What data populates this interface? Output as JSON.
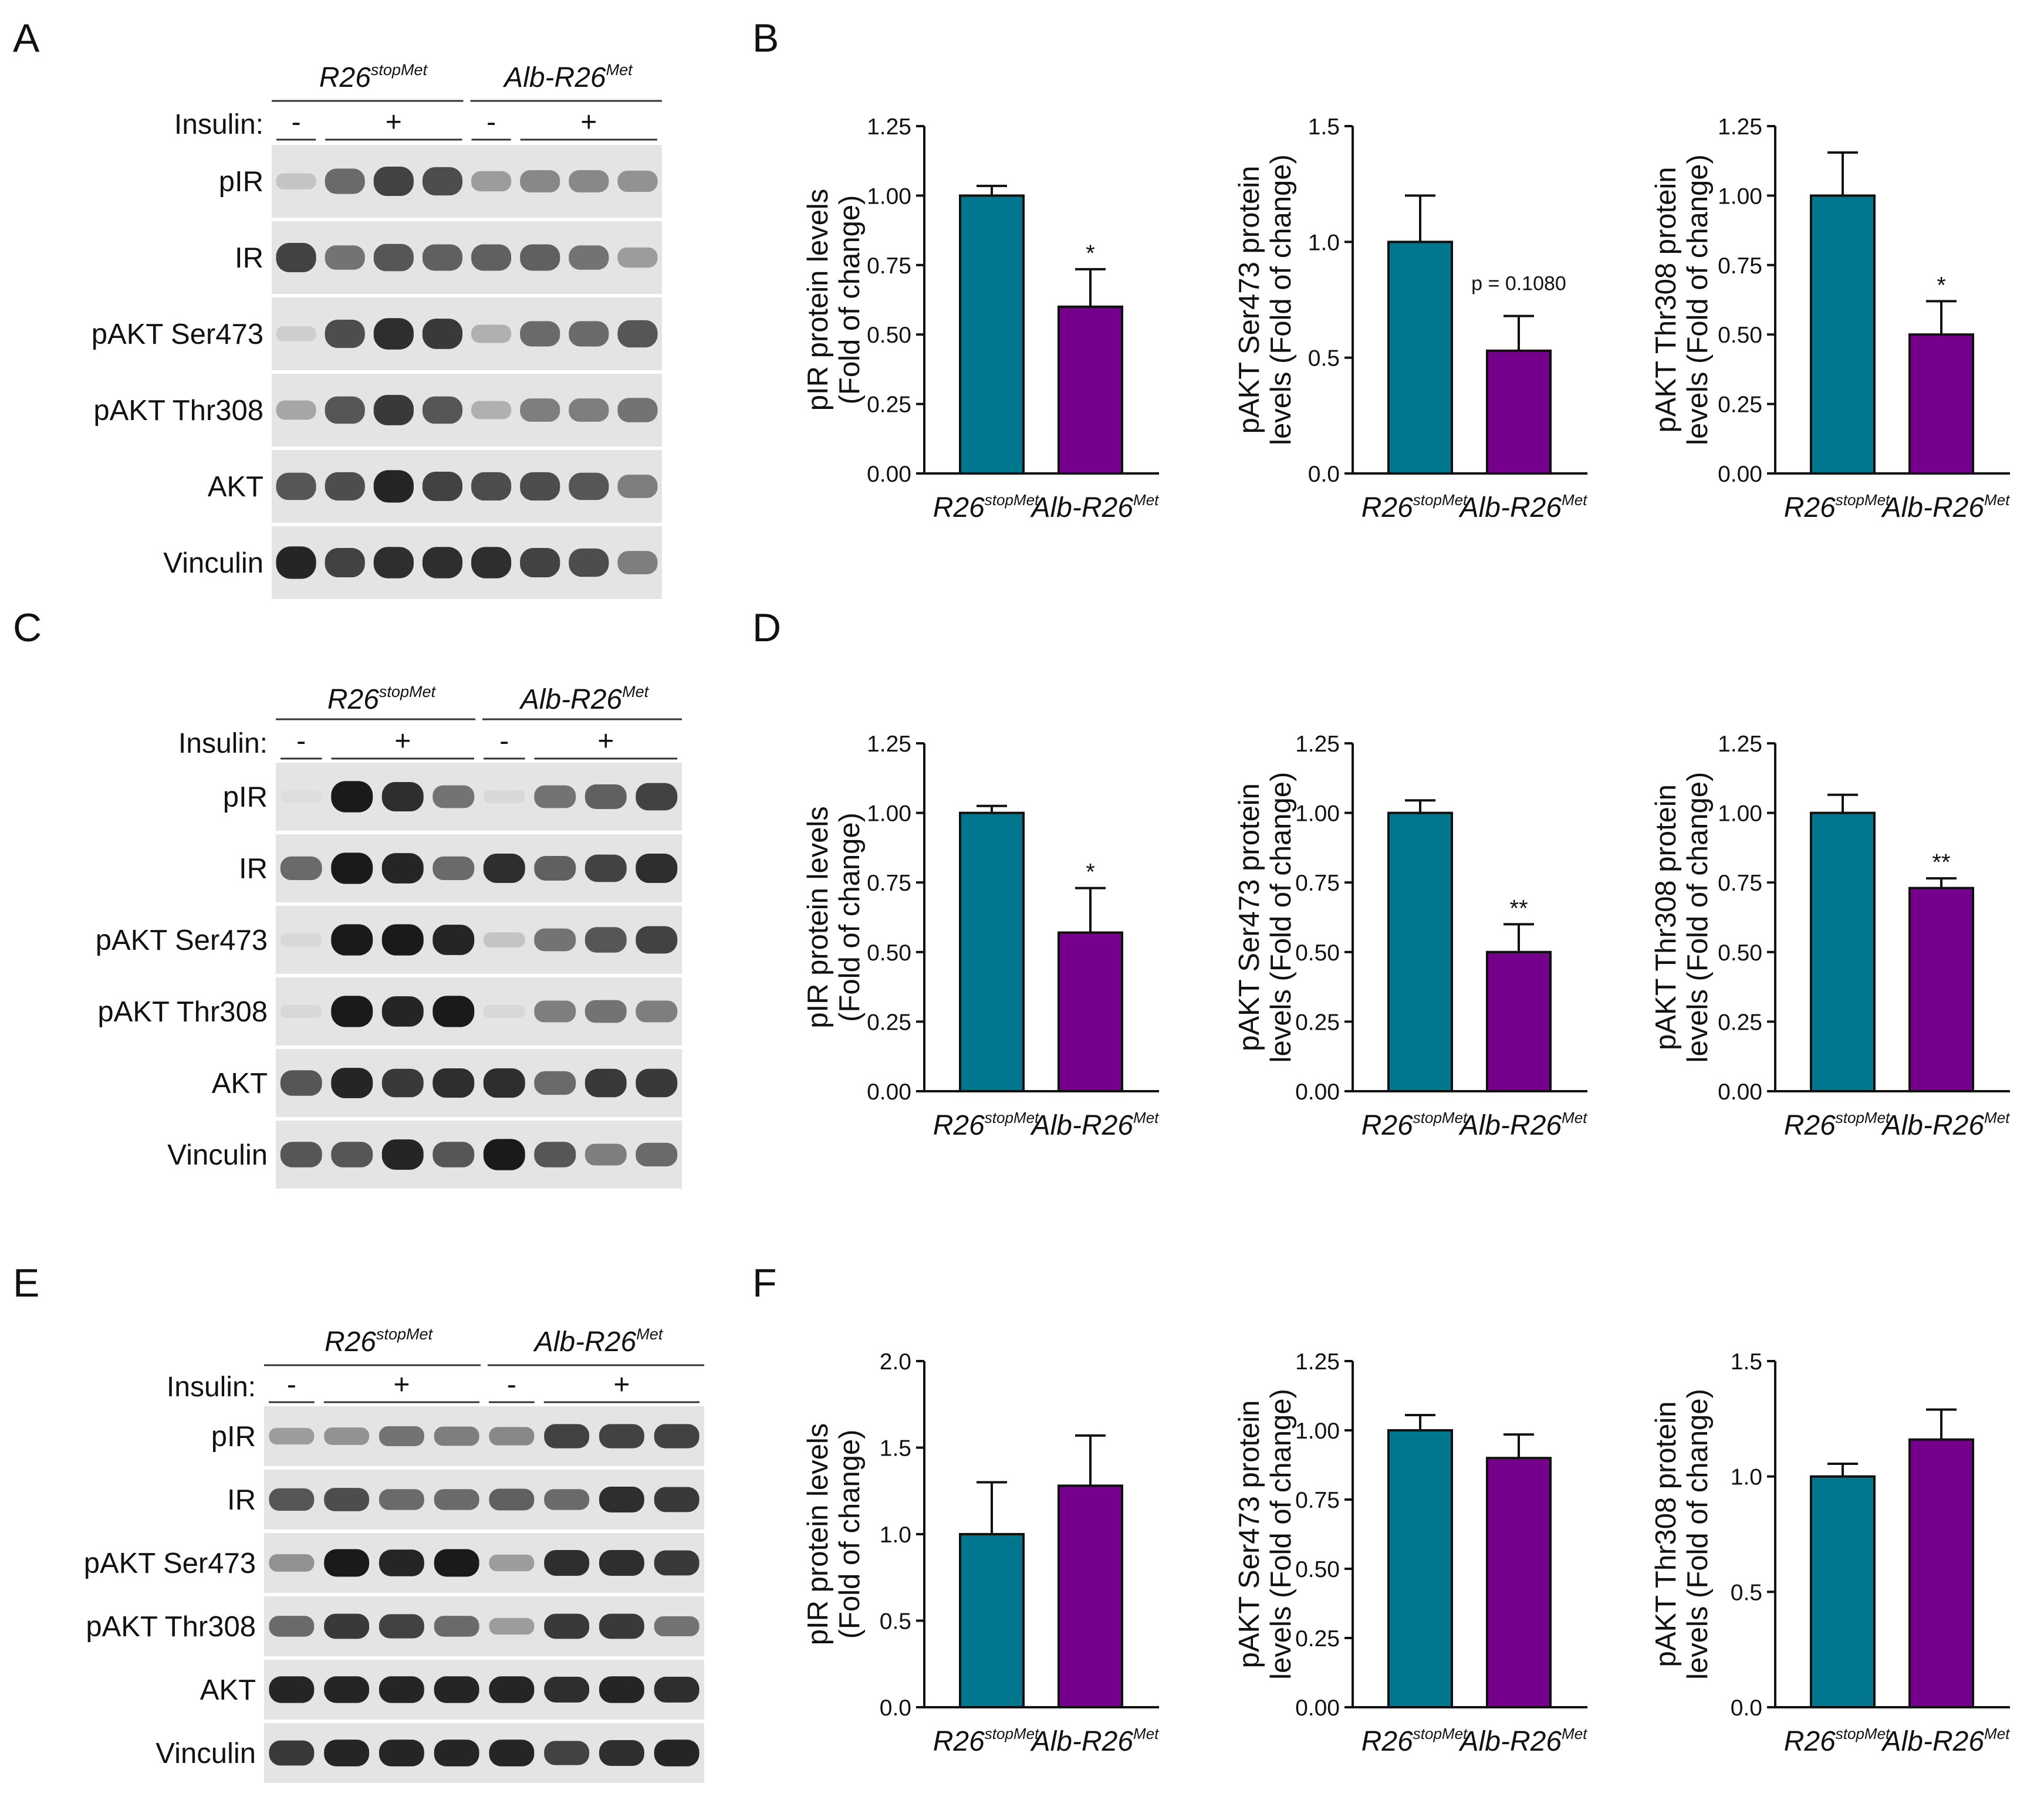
{
  "panel_labels": [
    "A",
    "B",
    "C",
    "D",
    "E",
    "F"
  ],
  "genotypes": {
    "control": {
      "base": "R26",
      "sup": "stopMet"
    },
    "mutant": {
      "base": "Alb-R26",
      "sup": "Met"
    }
  },
  "insulin_label": "Insulin:",
  "insulin_signs": [
    "-",
    "+",
    "-",
    "+"
  ],
  "blot_rows": [
    "pIR",
    "IR",
    "pAKT Ser473",
    "pAKT Thr308",
    "AKT",
    "Vinculin"
  ],
  "colors": {
    "control": "#00778e",
    "mutant": "#75008c"
  },
  "blots": [
    {
      "panel": "A",
      "lanes": 8,
      "rows": [
        {
          "name": "pIR",
          "bands": [
            0.15,
            0.6,
            0.8,
            0.75,
            0.35,
            0.45,
            0.45,
            0.4
          ]
        },
        {
          "name": "IR",
          "bands": [
            0.8,
            0.55,
            0.7,
            0.65,
            0.65,
            0.65,
            0.55,
            0.35
          ]
        },
        {
          "name": "pAKT Ser473",
          "bands": [
            0.1,
            0.75,
            0.9,
            0.85,
            0.25,
            0.6,
            0.6,
            0.7
          ]
        },
        {
          "name": "pAKT Thr308",
          "bands": [
            0.3,
            0.7,
            0.85,
            0.7,
            0.25,
            0.5,
            0.5,
            0.55
          ]
        },
        {
          "name": "AKT",
          "bands": [
            0.7,
            0.75,
            0.95,
            0.8,
            0.75,
            0.75,
            0.7,
            0.5
          ]
        },
        {
          "name": "Vinculin",
          "bands": [
            0.95,
            0.8,
            0.9,
            0.9,
            0.9,
            0.8,
            0.75,
            0.5
          ]
        }
      ]
    },
    {
      "panel": "C",
      "lanes": 8,
      "rows": [
        {
          "name": "pIR",
          "bands": [
            0.02,
            1.0,
            0.9,
            0.55,
            0.05,
            0.55,
            0.65,
            0.8
          ]
        },
        {
          "name": "IR",
          "bands": [
            0.6,
            1.0,
            0.95,
            0.6,
            0.9,
            0.65,
            0.8,
            0.9
          ]
        },
        {
          "name": "pAKT Ser473",
          "bands": [
            0.05,
            1.0,
            1.0,
            0.95,
            0.15,
            0.55,
            0.7,
            0.8
          ]
        },
        {
          "name": "pAKT Thr308",
          "bands": [
            0.05,
            1.0,
            0.95,
            1.0,
            0.05,
            0.5,
            0.55,
            0.5
          ]
        },
        {
          "name": "AKT",
          "bands": [
            0.7,
            0.95,
            0.85,
            0.9,
            0.9,
            0.6,
            0.85,
            0.85
          ]
        },
        {
          "name": "Vinculin",
          "bands": [
            0.7,
            0.7,
            0.95,
            0.7,
            1.0,
            0.7,
            0.5,
            0.6
          ]
        }
      ]
    },
    {
      "panel": "E",
      "lanes": 8,
      "rows": [
        {
          "name": "pIR",
          "bands": [
            0.35,
            0.4,
            0.55,
            0.5,
            0.45,
            0.8,
            0.8,
            0.8
          ]
        },
        {
          "name": "IR",
          "bands": [
            0.7,
            0.75,
            0.6,
            0.6,
            0.65,
            0.6,
            0.9,
            0.85
          ]
        },
        {
          "name": "pAKT Ser473",
          "bands": [
            0.4,
            1.0,
            0.95,
            1.0,
            0.35,
            0.9,
            0.9,
            0.85
          ]
        },
        {
          "name": "pAKT Thr308",
          "bands": [
            0.6,
            0.85,
            0.8,
            0.6,
            0.35,
            0.85,
            0.85,
            0.55
          ]
        },
        {
          "name": "AKT",
          "bands": [
            0.95,
            0.95,
            0.95,
            0.95,
            0.95,
            0.9,
            0.95,
            0.9
          ]
        },
        {
          "name": "Vinculin",
          "bands": [
            0.85,
            0.95,
            0.95,
            0.95,
            0.95,
            0.8,
            0.9,
            0.95
          ]
        }
      ]
    }
  ],
  "chart_data": [
    {
      "panel": "B",
      "type": "bar",
      "ylabel": [
        "pIR protein levels",
        "(Fold of change)"
      ],
      "categories": [
        "R26 stopMet",
        "Alb-R26 Met"
      ],
      "values": [
        1.0,
        0.6
      ],
      "errors": [
        0.035,
        0.135
      ],
      "ylim": [
        0,
        1.25
      ],
      "ticks": [
        "0.00",
        "0.25",
        "0.50",
        "0.75",
        "1.00",
        "1.25"
      ],
      "annotation": "*"
    },
    {
      "panel": "B",
      "type": "bar",
      "ylabel": [
        "pAKT Ser473 protein",
        "levels (Fold of change)"
      ],
      "categories": [
        "R26 stopMet",
        "Alb-R26 Met"
      ],
      "values": [
        1.0,
        0.53
      ],
      "errors": [
        0.2,
        0.15
      ],
      "ylim": [
        0,
        1.5
      ],
      "ticks": [
        "0.0",
        "0.5",
        "1.0",
        "1.5"
      ],
      "annotation": "p = 0.1080"
    },
    {
      "panel": "B",
      "type": "bar",
      "ylabel": [
        "pAKT Thr308 protein",
        "levels (Fold of change)"
      ],
      "categories": [
        "R26 stopMet",
        "Alb-R26 Met"
      ],
      "values": [
        1.0,
        0.5
      ],
      "errors": [
        0.155,
        0.12
      ],
      "ylim": [
        0,
        1.25
      ],
      "ticks": [
        "0.00",
        "0.25",
        "0.50",
        "0.75",
        "1.00",
        "1.25"
      ],
      "annotation": "*"
    },
    {
      "panel": "D",
      "type": "bar",
      "ylabel": [
        "pIR protein levels",
        "(Fold of change)"
      ],
      "categories": [
        "R26 stopMet",
        "Alb-R26 Met"
      ],
      "values": [
        1.0,
        0.57
      ],
      "errors": [
        0.025,
        0.16
      ],
      "ylim": [
        0,
        1.25
      ],
      "ticks": [
        "0.00",
        "0.25",
        "0.50",
        "0.75",
        "1.00",
        "1.25"
      ],
      "annotation": "*"
    },
    {
      "panel": "D",
      "type": "bar",
      "ylabel": [
        "pAKT Ser473 protein",
        "levels (Fold of change)"
      ],
      "categories": [
        "R26 stopMet",
        "Alb-R26 Met"
      ],
      "values": [
        1.0,
        0.5
      ],
      "errors": [
        0.045,
        0.1
      ],
      "ylim": [
        0,
        1.25
      ],
      "ticks": [
        "0.00",
        "0.25",
        "0.50",
        "0.75",
        "1.00",
        "1.25"
      ],
      "annotation": "**"
    },
    {
      "panel": "D",
      "type": "bar",
      "ylabel": [
        "pAKT Thr308 protein",
        "levels (Fold of change)"
      ],
      "categories": [
        "R26 stopMet",
        "Alb-R26 Met"
      ],
      "values": [
        1.0,
        0.73
      ],
      "errors": [
        0.065,
        0.035
      ],
      "ylim": [
        0,
        1.25
      ],
      "ticks": [
        "0.00",
        "0.25",
        "0.50",
        "0.75",
        "1.00",
        "1.25"
      ],
      "annotation": "**"
    },
    {
      "panel": "F",
      "type": "bar",
      "ylabel": [
        "pIR protein levels",
        "(Fold of change)"
      ],
      "categories": [
        "R26 stopMet",
        "Alb-R26 Met"
      ],
      "values": [
        1.0,
        1.28
      ],
      "errors": [
        0.3,
        0.29
      ],
      "ylim": [
        0,
        2.0
      ],
      "ticks": [
        "0.0",
        "0.5",
        "1.0",
        "1.5",
        "2.0"
      ],
      "annotation": ""
    },
    {
      "panel": "F",
      "type": "bar",
      "ylabel": [
        "pAKT Ser473 protein",
        "levels (Fold of change)"
      ],
      "categories": [
        "R26 stopMet",
        "Alb-R26 Met"
      ],
      "values": [
        1.0,
        0.9
      ],
      "errors": [
        0.055,
        0.085
      ],
      "ylim": [
        0,
        1.25
      ],
      "ticks": [
        "0.00",
        "0.25",
        "0.50",
        "0.75",
        "1.00",
        "1.25"
      ],
      "annotation": ""
    },
    {
      "panel": "F",
      "type": "bar",
      "ylabel": [
        "pAKT Thr308 protein",
        "levels (Fold of change)"
      ],
      "categories": [
        "R26 stopMet",
        "Alb-R26 Met"
      ],
      "values": [
        1.0,
        1.16
      ],
      "errors": [
        0.055,
        0.13
      ],
      "ylim": [
        0,
        1.5
      ],
      "ticks": [
        "0.0",
        "0.5",
        "1.0",
        "1.5"
      ],
      "annotation": ""
    }
  ]
}
